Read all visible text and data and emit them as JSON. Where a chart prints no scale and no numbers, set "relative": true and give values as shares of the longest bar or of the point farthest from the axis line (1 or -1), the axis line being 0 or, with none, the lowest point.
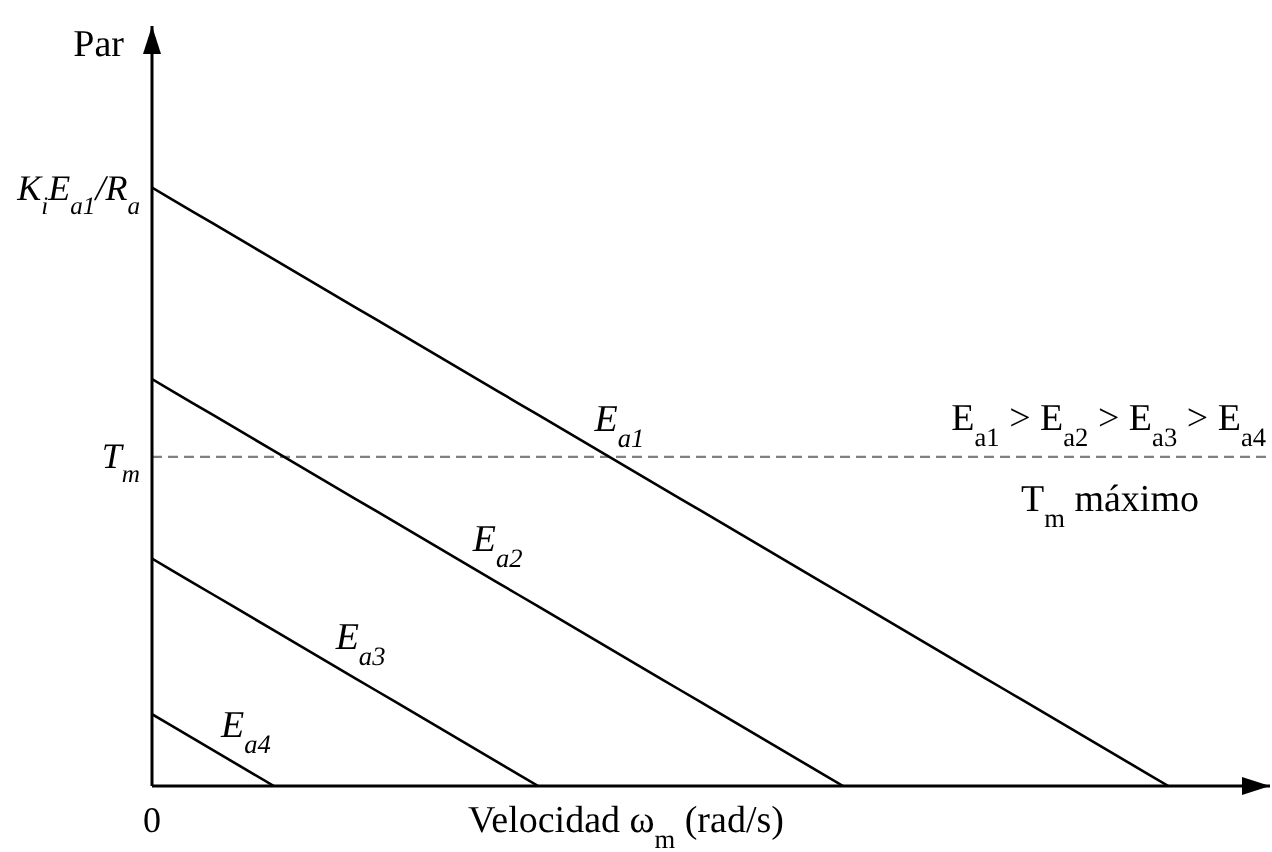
{
  "chart_data": {
    "type": "line",
    "relative": true,
    "ylabel": "Par",
    "xlabel": "Velocidad ω$_{m}$ (rad/s)",
    "marker": "none",
    "line_style": "solid",
    "categories": [
      null,
      null,
      null,
      null,
      null,
      null,
      null,
      null,
      null,
      null,
      null,
      null,
      null,
      null,
      null,
      null,
      null,
      null,
      null,
      null,
      null,
      null,
      null,
      null,
      null,
      null,
      null,
      null,
      null,
      null,
      null,
      null,
      null,
      null,
      null,
      null,
      null,
      null,
      null,
      null,
      null,
      null,
      null,
      null,
      null,
      null,
      null,
      null,
      null,
      null,
      null,
      null,
      null,
      null,
      null,
      null
    ],
    "series": [
      {
        "name": "E$_{a1}$",
        "color": "#000000",
        "values": [
          1,
          0.98,
          0.96,
          0.94,
          0.92,
          0.9,
          0.88,
          0.86,
          0.84,
          0.82,
          0.8,
          0.78,
          0.76,
          0.74,
          0.72,
          0.7,
          0.68,
          0.66,
          0.64,
          0.62,
          0.6,
          0.58,
          0.56,
          0.54,
          0.52,
          0.5,
          0.48,
          0.46,
          0.44,
          0.42,
          0.4,
          0.38,
          0.36,
          0.34,
          0.32,
          0.3,
          0.28,
          0.26,
          0.24,
          0.22,
          0.2,
          0.18,
          0.16,
          0.14,
          0.12,
          0.1,
          0.08,
          0.06,
          0.04,
          0.02,
          0,
          null,
          null,
          null,
          null,
          null
        ]
      },
      {
        "name": "E$_{a2}$",
        "color": "#000000",
        "values": [
          0.68,
          0.66,
          0.64,
          0.62,
          0.6,
          0.58,
          0.56,
          0.54,
          0.52,
          0.5,
          0.48,
          0.46,
          0.44,
          0.42,
          0.4,
          0.38,
          0.36,
          0.34,
          0.32,
          0.3,
          0.28,
          0.26,
          0.24,
          0.22,
          0.2,
          0.18,
          0.16,
          0.14,
          0.12,
          0.1,
          0.08,
          0.06,
          0.04,
          0.02,
          0,
          null,
          null,
          null,
          null,
          null,
          null,
          null,
          null,
          null,
          null,
          null,
          null,
          null,
          null,
          null,
          null,
          null,
          null,
          null,
          null,
          null
        ]
      },
      {
        "name": "E$_{a3}$",
        "color": "#000000",
        "values": [
          0.38,
          0.36,
          0.34,
          0.32,
          0.3,
          0.28,
          0.26,
          0.24,
          0.22,
          0.2,
          0.18,
          0.16,
          0.14,
          0.12,
          0.1,
          0.08,
          0.06,
          0.04,
          0.02,
          0,
          null,
          null,
          null,
          null,
          null,
          null,
          null,
          null,
          null,
          null,
          null,
          null,
          null,
          null,
          null,
          null,
          null,
          null,
          null,
          null,
          null,
          null,
          null,
          null,
          null,
          null,
          null,
          null,
          null,
          null,
          null,
          null,
          null,
          null,
          null,
          null
        ]
      },
      {
        "name": "E$_{a4}$",
        "color": "#000000",
        "values": [
          0.12,
          0.1,
          0.08,
          0.06,
          0.04,
          0.02,
          0,
          null,
          null,
          null,
          null,
          null,
          null,
          null,
          null,
          null,
          null,
          null,
          null,
          null,
          null,
          null,
          null,
          null,
          null,
          null,
          null,
          null,
          null,
          null,
          null,
          null,
          null,
          null,
          null,
          null,
          null,
          null,
          null,
          null,
          null,
          null,
          null,
          null,
          null,
          null,
          null,
          null,
          null,
          null,
          null,
          null,
          null,
          null,
          null,
          null
        ]
      }
    ],
    "ref_lines": [
      {
        "axis": "y",
        "value": 0.55,
        "label": "T$_{m}$ máximo",
        "line_style": "dashed",
        "color": "#808080"
      }
    ],
    "annotations": [
      "E$_{a1}$ > E$_{a2}$ > E$_{a3}$ > E$_{a4}$",
      "K$_{i}$E$_{a1}$/R$_{a}$",
      "T$_{m}$",
      "0"
    ]
  }
}
